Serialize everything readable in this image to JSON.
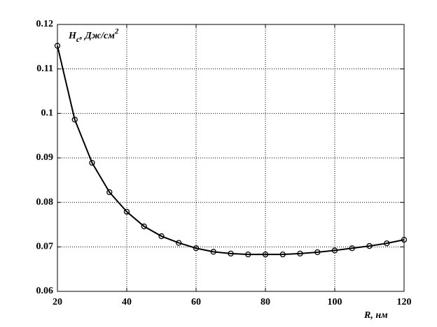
{
  "chart_data": {
    "type": "line",
    "ylabel": [
      "H",
      "c",
      ", Дж/см",
      "2"
    ],
    "xlabel": "R, нм",
    "x": [
      20,
      25,
      30,
      35,
      40,
      45,
      50,
      55,
      60,
      65,
      70,
      75,
      80,
      85,
      90,
      95,
      100,
      105,
      110,
      115,
      120
    ],
    "values": [
      0.1152,
      0.0986,
      0.0889,
      0.0823,
      0.0779,
      0.0746,
      0.0724,
      0.0709,
      0.0697,
      0.0689,
      0.0685,
      0.0683,
      0.0683,
      0.0683,
      0.0685,
      0.0688,
      0.0692,
      0.0697,
      0.0702,
      0.0708,
      0.0716
    ],
    "color": "#000000",
    "marker": "circle",
    "xlim": [
      20,
      120
    ],
    "xticks": [
      20,
      40,
      60,
      80,
      100,
      120
    ],
    "ylim": [
      0.06,
      0.12
    ],
    "yticks": [
      0.06,
      0.07,
      0.08,
      0.09,
      0.1,
      0.11,
      0.12
    ],
    "grid": true
  }
}
